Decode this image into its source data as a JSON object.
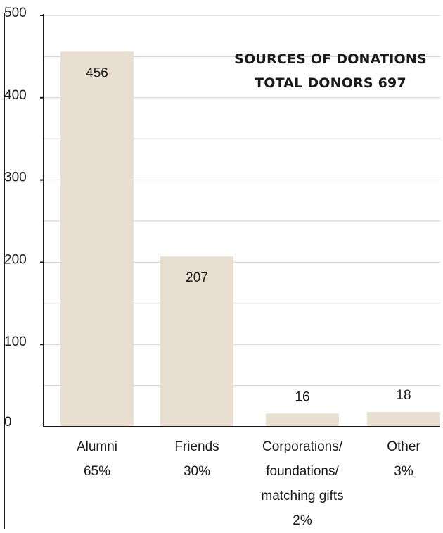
{
  "chart_data": {
    "type": "bar",
    "title": "SOURCES OF DONATIONS",
    "subtitle": "TOTAL DONORS 697",
    "xlabel": "",
    "ylabel": "",
    "ylim": [
      0,
      500
    ],
    "yticks": [
      0,
      100,
      200,
      300,
      400,
      500
    ],
    "grid": true,
    "categories": [
      [
        "Alumni",
        "65%"
      ],
      [
        "Friends",
        "30%"
      ],
      [
        "Corporations/",
        "foundations/",
        "matching gifts",
        "2%"
      ],
      [
        "Other",
        "3%"
      ]
    ],
    "values": [
      456,
      207,
      16,
      18
    ],
    "data_labels": [
      "456",
      "207",
      "16",
      "18"
    ],
    "colors": {
      "bar": "#e8dfd1",
      "axis": "#1a1a1a",
      "grid": "#cfcfcf",
      "text": "#1a1a1a"
    }
  }
}
